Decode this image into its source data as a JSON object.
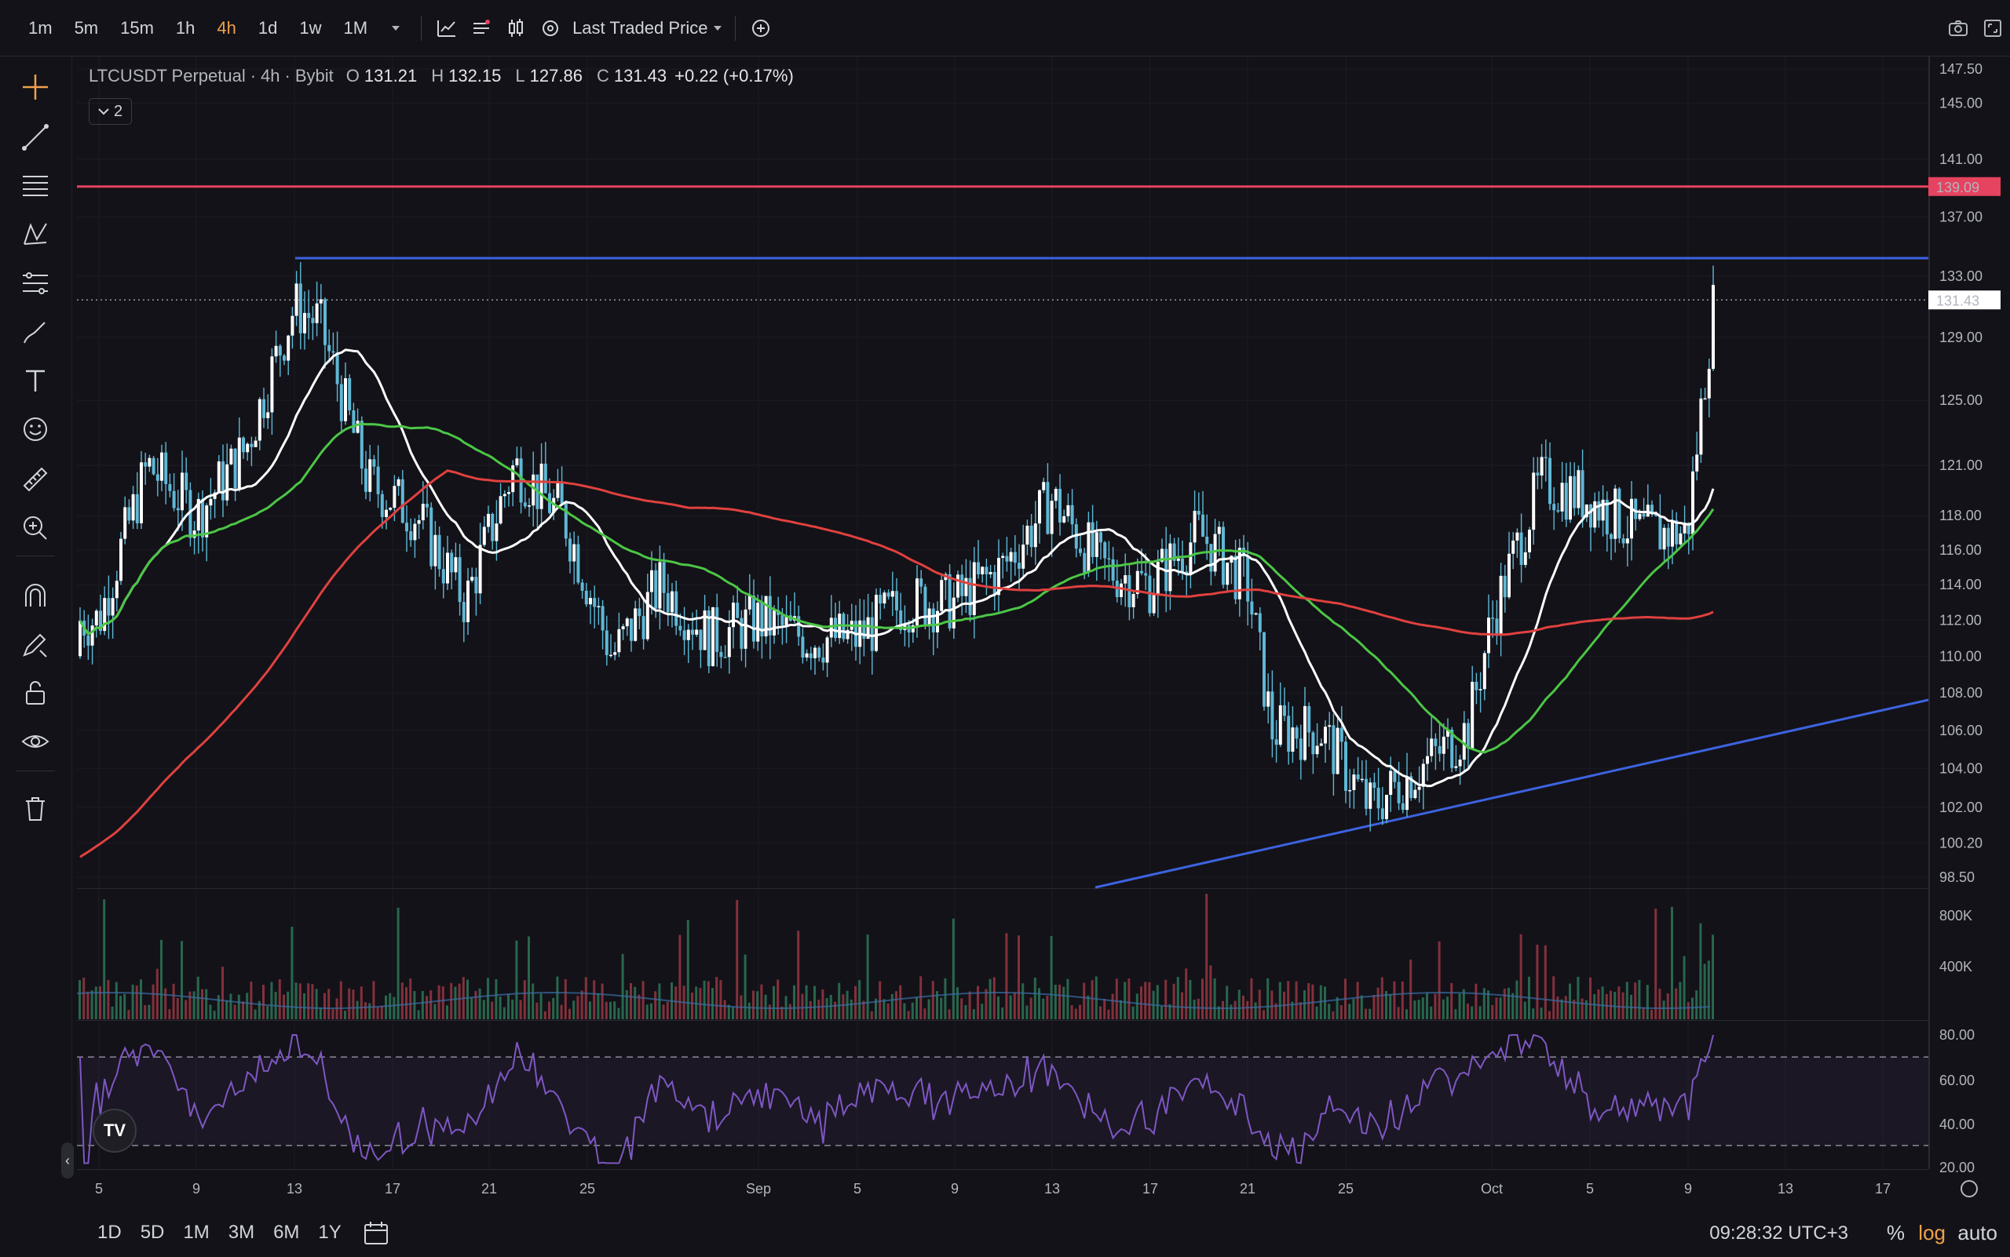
{
  "topbar": {
    "timeframes": [
      "1m",
      "5m",
      "15m",
      "1h",
      "4h",
      "1d",
      "1w",
      "1M"
    ],
    "active_timeframe": "4h",
    "price_source": "Last Traded Price"
  },
  "legend": {
    "symbol": "LTCUSDT Perpetual",
    "interval": "4h",
    "exchange": "Bybit",
    "open_label": "O",
    "open": "131.21",
    "high_label": "H",
    "high": "132.15",
    "low_label": "L",
    "low": "127.86",
    "close_label": "C",
    "close": "131.43",
    "change": "+0.22 (+0.17%)",
    "indicator_count": "2"
  },
  "price_axis": {
    "ticks": [
      "147.50",
      "145.00",
      "141.00",
      "137.00",
      "133.00",
      "129.00",
      "125.00",
      "121.00",
      "118.00",
      "116.00",
      "114.00",
      "112.00",
      "110.00",
      "108.00",
      "106.00",
      "104.00",
      "102.00",
      "100.20",
      "98.50"
    ],
    "red_level_label": "139.09",
    "last_price_label": "131.43"
  },
  "volume_axis": {
    "ticks": [
      "800K",
      "400K"
    ]
  },
  "rsi_axis": {
    "ticks": [
      "80.00",
      "60.00",
      "40.00",
      "20.00"
    ]
  },
  "time_axis": {
    "labels": [
      "5",
      "9",
      "13",
      "17",
      "21",
      "25",
      "Sep",
      "5",
      "9",
      "13",
      "17",
      "21",
      "25",
      "Oct",
      "5",
      "9",
      "13",
      "17"
    ]
  },
  "bottombar": {
    "ranges": [
      "1D",
      "5D",
      "1M",
      "3M",
      "6M",
      "1Y"
    ],
    "clock": "09:28:32 UTC+3",
    "percent_label": "%",
    "log_label": "log",
    "auto_label": "auto"
  },
  "colors": {
    "background": "#131218",
    "candle": "#5fb8d6",
    "red_line": "#e5435f",
    "blue_line": "#3d63e0",
    "ma_white": "#ffffff",
    "ma_green": "#4cc646",
    "ma_red": "#e0413f",
    "rsi": "#7e57c2",
    "accent": "#f0a04b"
  },
  "chart_data": {
    "type": "candlestick",
    "symbol": "LTCUSDT Perpetual",
    "interval": "4h",
    "price_scale": "log",
    "ylim": [
      98.5,
      147.5
    ],
    "horizontal_levels": [
      139.09,
      134.2
    ],
    "last_price": 131.43,
    "close_path": [
      [
        "Aug 5",
        112
      ],
      [
        "Aug 7",
        121
      ],
      [
        "Aug 9",
        118
      ],
      [
        "Aug 11",
        122
      ],
      [
        "Aug 13",
        131
      ],
      [
        "Aug 14",
        130
      ],
      [
        "Aug 16",
        120
      ],
      [
        "Aug 18",
        118
      ],
      [
        "Aug 20",
        113
      ],
      [
        "Aug 22",
        121
      ],
      [
        "Aug 24",
        118
      ],
      [
        "Aug 26",
        110
      ],
      [
        "Aug 28",
        114
      ],
      [
        "Aug 30",
        111
      ],
      [
        "Sep 1",
        112
      ],
      [
        "Sep 3",
        111
      ],
      [
        "Sep 5",
        111
      ],
      [
        "Sep 7",
        113
      ],
      [
        "Sep 9",
        113
      ],
      [
        "Sep 11",
        115
      ],
      [
        "Sep 13",
        119
      ],
      [
        "Sep 15",
        115
      ],
      [
        "Sep 17",
        114
      ],
      [
        "Sep 19",
        117
      ],
      [
        "Sep 21",
        114
      ],
      [
        "Sep 22",
        106
      ],
      [
        "Sep 24",
        106
      ],
      [
        "Sep 26",
        102
      ],
      [
        "Sep 28",
        104
      ],
      [
        "Sep 30",
        106
      ],
      [
        "Oct 1",
        112
      ],
      [
        "Oct 3",
        120
      ],
      [
        "Oct 5",
        119
      ],
      [
        "Oct 7",
        117
      ],
      [
        "Oct 9",
        117
      ],
      [
        "Oct 10",
        131.43
      ]
    ],
    "rsi_levels": [
      70,
      30
    ],
    "rsi_last": 80
  }
}
